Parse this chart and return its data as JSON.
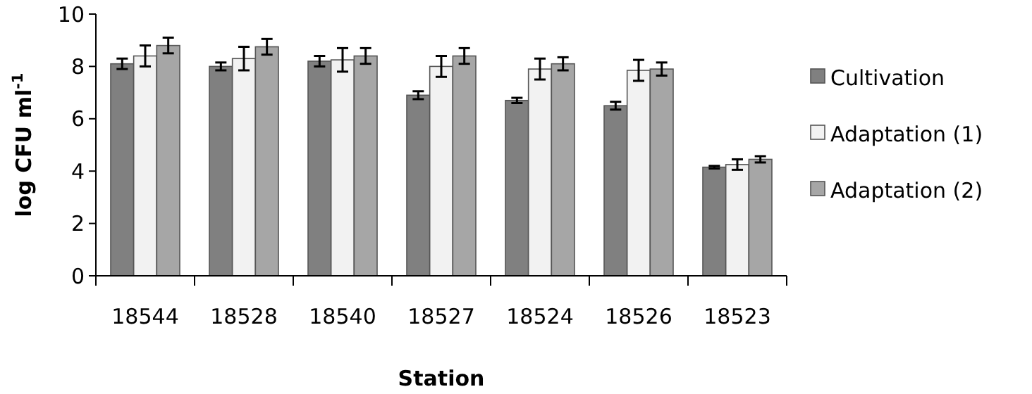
{
  "chart_data": {
    "type": "bar",
    "xlabel": "Station",
    "ylabel": "log CFU ml$^{-1}$",
    "categories": [
      "18544",
      "18528",
      "18540",
      "18527",
      "18524",
      "18526",
      "18523"
    ],
    "series": [
      {
        "name": "Cultivation",
        "color": "#808080",
        "values": [
          8.1,
          8.0,
          8.2,
          6.9,
          6.7,
          6.5,
          4.15
        ],
        "errors": [
          0.2,
          0.15,
          0.2,
          0.15,
          0.1,
          0.15,
          0.05
        ]
      },
      {
        "name": "Adaptation (1)",
        "color": "#f2f2f2",
        "values": [
          8.4,
          8.3,
          8.25,
          8.0,
          7.9,
          7.85,
          4.25
        ],
        "errors": [
          0.4,
          0.45,
          0.45,
          0.4,
          0.4,
          0.4,
          0.2
        ]
      },
      {
        "name": "Adaptation (2)",
        "color": "#a6a6a6",
        "values": [
          8.8,
          8.75,
          8.4,
          8.4,
          8.1,
          7.9,
          4.45
        ],
        "errors": [
          0.3,
          0.3,
          0.3,
          0.3,
          0.25,
          0.25,
          0.12
        ]
      }
    ],
    "ylim": [
      0,
      10
    ],
    "yticks": [
      0,
      2,
      4,
      6,
      8,
      10
    ],
    "grid": false,
    "legend": "right"
  }
}
